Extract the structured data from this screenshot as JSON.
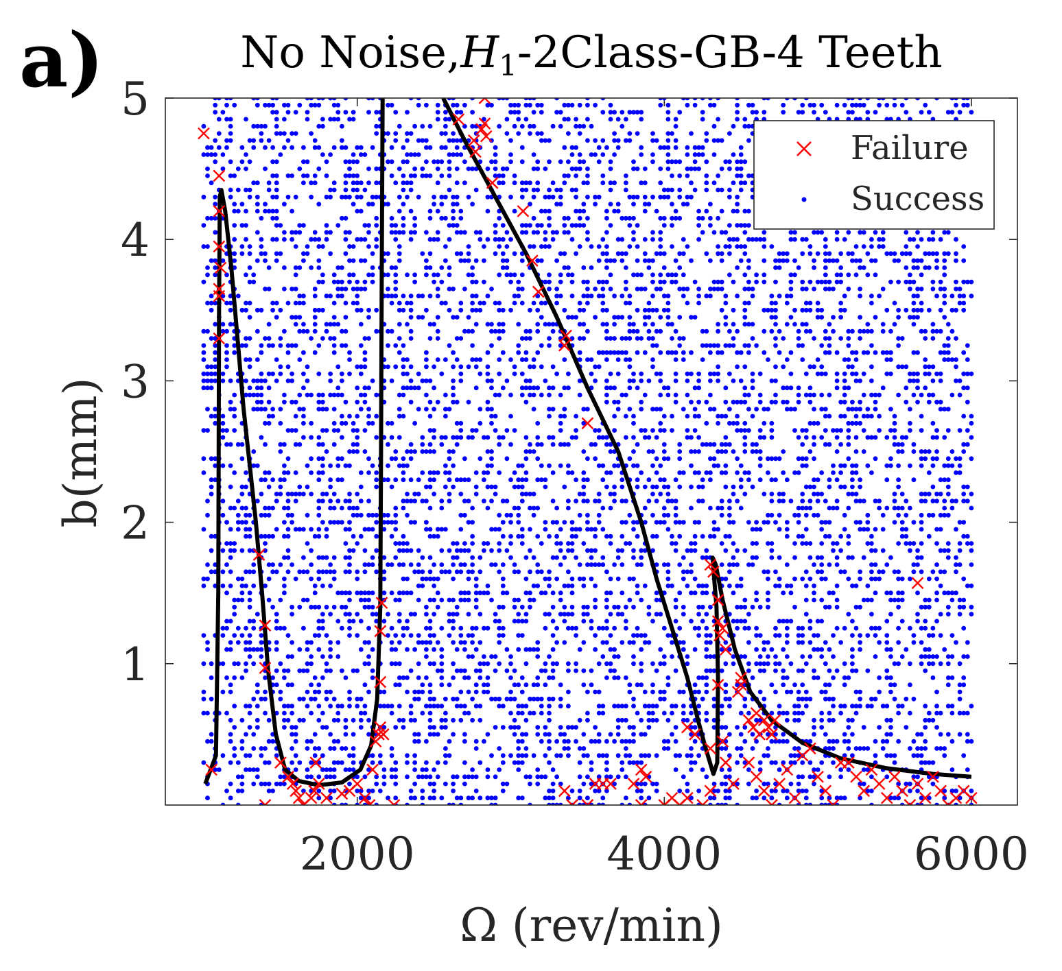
{
  "panel_label": "a)",
  "title": "No Noise,H1-2Class-GB-4 Teeth",
  "title_parts": {
    "before": "No Noise,",
    "italic": "H",
    "subscript": "1",
    "after": "-2Class-GB-4 Teeth"
  },
  "legend": {
    "failure": "Failure",
    "success": "Success"
  },
  "colors": {
    "failure": "#ff0000",
    "success": "#0000ff",
    "boundary": "#000000"
  },
  "chart_data": {
    "type": "scatter",
    "title": "No Noise,H1-2Class-GB-4 Teeth",
    "xlabel": "Ω (rev/min)",
    "ylabel": "b(mm)",
    "xlim": [
      750,
      6300
    ],
    "ylim": [
      0,
      5
    ],
    "xticks": [
      2000,
      4000,
      6000
    ],
    "yticks": [
      1,
      2,
      3,
      4,
      5
    ],
    "xtick_labels": [
      "2000",
      "4000",
      "6000"
    ],
    "ytick_labels": [
      "1",
      "2",
      "3",
      "4",
      "5"
    ],
    "legend_position": "top-right",
    "grid": false,
    "series": [
      {
        "name": "Failure",
        "marker": "x",
        "color": "#ff0000",
        "points": [
          [
            1000,
            4.75
          ],
          [
            1100,
            4.45
          ],
          [
            1100,
            4.2
          ],
          [
            1100,
            3.95
          ],
          [
            1110,
            3.8
          ],
          [
            1100,
            3.65
          ],
          [
            1100,
            3.6
          ],
          [
            1100,
            3.3
          ],
          [
            1050,
            0.25
          ],
          [
            1360,
            1.77
          ],
          [
            1400,
            1.27
          ],
          [
            1400,
            0.97
          ],
          [
            1400,
            0.0
          ],
          [
            1500,
            0.3
          ],
          [
            1550,
            0.2
          ],
          [
            1580,
            0.15
          ],
          [
            1600,
            0.1
          ],
          [
            1620,
            0.05
          ],
          [
            1650,
            0.0
          ],
          [
            1700,
            0.05
          ],
          [
            1720,
            0.1
          ],
          [
            1730,
            0.3
          ],
          [
            1750,
            0.15
          ],
          [
            1800,
            0.05
          ],
          [
            1900,
            0.08
          ],
          [
            1950,
            0.1
          ],
          [
            2000,
            0.15
          ],
          [
            2050,
            0.05
          ],
          [
            2080,
            0.0
          ],
          [
            2100,
            0.25
          ],
          [
            2120,
            0.45
          ],
          [
            2140,
            0.5
          ],
          [
            2150,
            0.55
          ],
          [
            2170,
            0.5
          ],
          [
            2150,
            0.87
          ],
          [
            2150,
            1.23
          ],
          [
            2160,
            1.43
          ],
          [
            2240,
            0.0
          ],
          [
            2660,
            4.85
          ],
          [
            2760,
            4.7
          ],
          [
            2770,
            4.62
          ],
          [
            2810,
            4.78
          ],
          [
            2830,
            4.82
          ],
          [
            2840,
            4.73
          ],
          [
            2830,
            5.0
          ],
          [
            2880,
            4.4
          ],
          [
            3080,
            4.2
          ],
          [
            3140,
            3.85
          ],
          [
            3180,
            3.63
          ],
          [
            3360,
            3.32
          ],
          [
            3350,
            3.25
          ],
          [
            3500,
            2.7
          ],
          [
            3350,
            0.1
          ],
          [
            3400,
            0.0
          ],
          [
            3500,
            0.0
          ],
          [
            3550,
            0.15
          ],
          [
            3600,
            0.15
          ],
          [
            3650,
            0.15
          ],
          [
            3800,
            0.15
          ],
          [
            3850,
            0.25
          ],
          [
            3880,
            0.2
          ],
          [
            3850,
            0.0
          ],
          [
            4000,
            0.0
          ],
          [
            4050,
            0.05
          ],
          [
            4100,
            0.0
          ],
          [
            4150,
            0.05
          ],
          [
            4150,
            0.55
          ],
          [
            4200,
            0.5
          ],
          [
            4250,
            0.0
          ],
          [
            4300,
            0.1
          ],
          [
            4300,
            0.4
          ],
          [
            4300,
            1.7
          ],
          [
            4320,
            1.65
          ],
          [
            4350,
            1.45
          ],
          [
            4350,
            1.3
          ],
          [
            4360,
            1.2
          ],
          [
            4380,
            1.25
          ],
          [
            4400,
            1.1
          ],
          [
            4350,
            0.85
          ],
          [
            4380,
            0.45
          ],
          [
            4400,
            0.3
          ],
          [
            4450,
            0.15
          ],
          [
            4500,
            0.85
          ],
          [
            4500,
            0.9
          ],
          [
            4480,
            0.8
          ],
          [
            4550,
            0.6
          ],
          [
            4580,
            0.55
          ],
          [
            4600,
            0.65
          ],
          [
            4620,
            0.5
          ],
          [
            4650,
            0.6
          ],
          [
            4680,
            0.55
          ],
          [
            4700,
            0.5
          ],
          [
            4720,
            0.6
          ],
          [
            4550,
            0.3
          ],
          [
            4600,
            0.2
          ],
          [
            4650,
            0.1
          ],
          [
            4700,
            0.0
          ],
          [
            4750,
            0.15
          ],
          [
            4800,
            0.25
          ],
          [
            4850,
            0.05
          ],
          [
            4900,
            0.35
          ],
          [
            4950,
            0.4
          ],
          [
            5000,
            0.2
          ],
          [
            5050,
            0.1
          ],
          [
            5100,
            0.0
          ],
          [
            5150,
            0.3
          ],
          [
            5200,
            0.3
          ],
          [
            5250,
            0.2
          ],
          [
            5300,
            0.1
          ],
          [
            5350,
            0.25
          ],
          [
            5400,
            0.15
          ],
          [
            5450,
            0.05
          ],
          [
            5500,
            0.2
          ],
          [
            5550,
            0.1
          ],
          [
            5600,
            0.0
          ],
          [
            5650,
            0.15
          ],
          [
            5700,
            0.05
          ],
          [
            5750,
            0.2
          ],
          [
            5800,
            0.1
          ],
          [
            5850,
            0.0
          ],
          [
            5900,
            0.05
          ],
          [
            5950,
            0.1
          ],
          [
            6000,
            0.05
          ],
          [
            5650,
            1.57
          ]
        ]
      },
      {
        "name": "Success",
        "marker": "dot",
        "color": "#0000ff",
        "generation": "uniform scattered sample over Ω 1000–6000 rev/min, b 0–5 mm",
        "approx_count": 3200
      }
    ],
    "boundary_curves": [
      {
        "label": "lobe-1",
        "points": [
          [
            1010,
            0.15
          ],
          [
            1080,
            0.35
          ],
          [
            1095,
            1.5
          ],
          [
            1100,
            3.5
          ],
          [
            1105,
            4.3
          ],
          [
            1115,
            4.35
          ],
          [
            1140,
            4.2
          ],
          [
            1180,
            3.8
          ],
          [
            1220,
            3.3
          ],
          [
            1260,
            2.8
          ],
          [
            1300,
            2.4
          ],
          [
            1340,
            2.0
          ],
          [
            1380,
            1.5
          ],
          [
            1420,
            0.95
          ],
          [
            1470,
            0.5
          ],
          [
            1530,
            0.25
          ],
          [
            1620,
            0.17
          ],
          [
            1750,
            0.14
          ],
          [
            1900,
            0.16
          ],
          [
            2020,
            0.25
          ],
          [
            2090,
            0.42
          ],
          [
            2130,
            0.75
          ],
          [
            2150,
            1.4
          ],
          [
            2155,
            2.5
          ],
          [
            2160,
            3.8
          ],
          [
            2165,
            5.0
          ]
        ]
      },
      {
        "label": "lobe-2",
        "points": [
          [
            2560,
            5.0
          ],
          [
            2700,
            4.7
          ],
          [
            2900,
            4.3
          ],
          [
            3100,
            3.9
          ],
          [
            3300,
            3.45
          ],
          [
            3500,
            2.95
          ],
          [
            3700,
            2.5
          ],
          [
            3850,
            2.0
          ],
          [
            3950,
            1.6
          ],
          [
            4050,
            1.25
          ],
          [
            4150,
            0.9
          ],
          [
            4220,
            0.6
          ],
          [
            4270,
            0.4
          ],
          [
            4320,
            0.22
          ],
          [
            4345,
            0.3
          ],
          [
            4350,
            0.9
          ],
          [
            4340,
            1.4
          ],
          [
            4325,
            1.6
          ],
          [
            4315,
            1.75
          ],
          [
            4335,
            1.7
          ],
          [
            4380,
            1.45
          ],
          [
            4460,
            1.1
          ],
          [
            4560,
            0.8
          ],
          [
            4700,
            0.6
          ],
          [
            4900,
            0.44
          ],
          [
            5150,
            0.33
          ],
          [
            5450,
            0.26
          ],
          [
            5750,
            0.22
          ],
          [
            6000,
            0.2
          ]
        ]
      }
    ]
  }
}
